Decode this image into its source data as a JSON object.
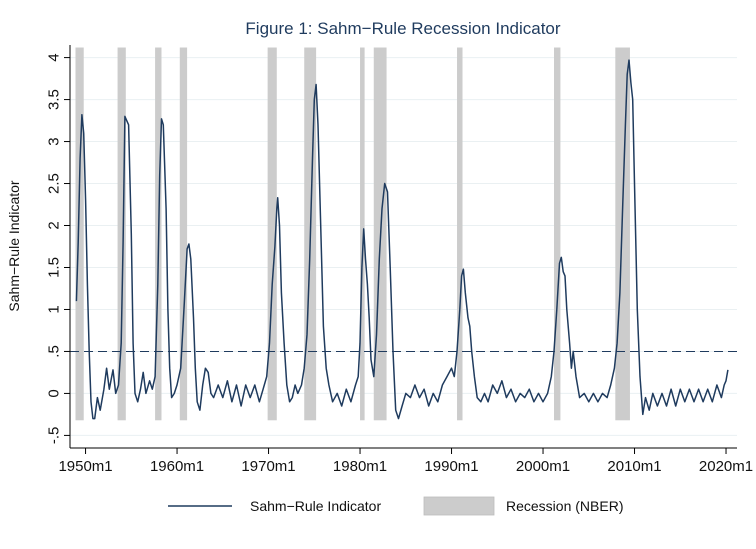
{
  "chart_data": {
    "type": "line",
    "title": "Figure 1: Sahm−Rule Recession Indicator",
    "xlabel": "",
    "ylabel": "Sahm−Rule Indicator",
    "xlim": [
      1948.3,
      2021.2
    ],
    "ylim": [
      -0.65,
      4.15
    ],
    "x_ticks": [
      1950,
      1960,
      1970,
      1980,
      1990,
      2000,
      2010,
      2020
    ],
    "x_tick_labels": [
      "1950m1",
      "1960m1",
      "1970m1",
      "1980m1",
      "1990m1",
      "2000m1",
      "2010m1",
      "2020m1"
    ],
    "y_ticks": [
      -0.5,
      0,
      0.5,
      1,
      1.5,
      2,
      2.5,
      3,
      3.5,
      4
    ],
    "y_tick_labels": [
      "-.5",
      "0",
      ".5",
      "1",
      "1.5",
      "2",
      "2.5",
      "3",
      "3.5",
      "4"
    ],
    "grid": true,
    "threshold": {
      "value": 0.5,
      "style": "dashed"
    },
    "recessions": [
      [
        1948.9,
        1949.8
      ],
      [
        1953.5,
        1954.4
      ],
      [
        1957.6,
        1958.3
      ],
      [
        1960.3,
        1961.1
      ],
      [
        1969.9,
        1970.9
      ],
      [
        1973.9,
        1975.2
      ],
      [
        1980.0,
        1980.5
      ],
      [
        1981.5,
        1982.9
      ],
      [
        1990.6,
        1991.2
      ],
      [
        2001.2,
        2001.9
      ],
      [
        2007.9,
        2009.5
      ]
    ],
    "series": [
      {
        "name": "Sahm−Rule Indicator",
        "color": "#1f3b5e",
        "points": [
          [
            1949.0,
            1.1
          ],
          [
            1949.2,
            1.8
          ],
          [
            1949.4,
            2.8
          ],
          [
            1949.6,
            3.32
          ],
          [
            1949.8,
            3.1
          ],
          [
            1950.0,
            2.3
          ],
          [
            1950.2,
            1.3
          ],
          [
            1950.4,
            0.5
          ],
          [
            1950.6,
            -0.1
          ],
          [
            1950.8,
            -0.3
          ],
          [
            1951.0,
            -0.3
          ],
          [
            1951.3,
            -0.05
          ],
          [
            1951.6,
            -0.2
          ],
          [
            1952.0,
            0.05
          ],
          [
            1952.3,
            0.3
          ],
          [
            1952.6,
            0.05
          ],
          [
            1953.0,
            0.28
          ],
          [
            1953.3,
            0.0
          ],
          [
            1953.6,
            0.1
          ],
          [
            1953.9,
            0.6
          ],
          [
            1954.1,
            1.8
          ],
          [
            1954.3,
            3.3
          ],
          [
            1954.5,
            3.25
          ],
          [
            1954.7,
            3.2
          ],
          [
            1955.0,
            1.9
          ],
          [
            1955.2,
            0.6
          ],
          [
            1955.4,
            0.0
          ],
          [
            1955.7,
            -0.1
          ],
          [
            1956.0,
            0.05
          ],
          [
            1956.3,
            0.25
          ],
          [
            1956.6,
            0.0
          ],
          [
            1957.0,
            0.15
          ],
          [
            1957.3,
            0.05
          ],
          [
            1957.6,
            0.2
          ],
          [
            1957.9,
            1.3
          ],
          [
            1958.1,
            2.6
          ],
          [
            1958.3,
            3.27
          ],
          [
            1958.5,
            3.2
          ],
          [
            1958.8,
            2.2
          ],
          [
            1959.0,
            1.0
          ],
          [
            1959.2,
            0.3
          ],
          [
            1959.4,
            -0.05
          ],
          [
            1959.7,
            0.0
          ],
          [
            1960.0,
            0.1
          ],
          [
            1960.4,
            0.3
          ],
          [
            1960.8,
            1.1
          ],
          [
            1961.1,
            1.72
          ],
          [
            1961.3,
            1.78
          ],
          [
            1961.5,
            1.6
          ],
          [
            1961.8,
            0.9
          ],
          [
            1962.0,
            0.3
          ],
          [
            1962.2,
            -0.1
          ],
          [
            1962.5,
            -0.2
          ],
          [
            1962.8,
            0.1
          ],
          [
            1963.1,
            0.3
          ],
          [
            1963.4,
            0.25
          ],
          [
            1963.7,
            0.0
          ],
          [
            1964.0,
            -0.05
          ],
          [
            1964.5,
            0.1
          ],
          [
            1965.0,
            -0.05
          ],
          [
            1965.5,
            0.15
          ],
          [
            1966.0,
            -0.1
          ],
          [
            1966.5,
            0.1
          ],
          [
            1967.0,
            -0.15
          ],
          [
            1967.5,
            0.1
          ],
          [
            1968.0,
            -0.05
          ],
          [
            1968.5,
            0.1
          ],
          [
            1969.0,
            -0.1
          ],
          [
            1969.4,
            0.05
          ],
          [
            1969.8,
            0.2
          ],
          [
            1970.1,
            0.6
          ],
          [
            1970.4,
            1.3
          ],
          [
            1970.7,
            1.75
          ],
          [
            1970.9,
            2.2
          ],
          [
            1971.0,
            2.33
          ],
          [
            1971.2,
            2.0
          ],
          [
            1971.4,
            1.2
          ],
          [
            1971.7,
            0.6
          ],
          [
            1972.0,
            0.1
          ],
          [
            1972.3,
            -0.1
          ],
          [
            1972.6,
            -0.05
          ],
          [
            1972.9,
            0.1
          ],
          [
            1973.2,
            0.0
          ],
          [
            1973.6,
            0.1
          ],
          [
            1973.9,
            0.3
          ],
          [
            1974.2,
            0.7
          ],
          [
            1974.5,
            1.6
          ],
          [
            1974.8,
            2.8
          ],
          [
            1975.0,
            3.5
          ],
          [
            1975.2,
            3.68
          ],
          [
            1975.4,
            3.2
          ],
          [
            1975.7,
            2.0
          ],
          [
            1976.0,
            0.8
          ],
          [
            1976.3,
            0.3
          ],
          [
            1976.6,
            0.1
          ],
          [
            1977.0,
            -0.1
          ],
          [
            1977.5,
            0.0
          ],
          [
            1978.0,
            -0.15
          ],
          [
            1978.5,
            0.05
          ],
          [
            1979.0,
            -0.1
          ],
          [
            1979.5,
            0.1
          ],
          [
            1979.8,
            0.2
          ],
          [
            1980.0,
            0.6
          ],
          [
            1980.2,
            1.5
          ],
          [
            1980.4,
            1.96
          ],
          [
            1980.6,
            1.6
          ],
          [
            1980.8,
            1.3
          ],
          [
            1981.0,
            0.9
          ],
          [
            1981.2,
            0.4
          ],
          [
            1981.5,
            0.2
          ],
          [
            1981.8,
            0.7
          ],
          [
            1982.1,
            1.6
          ],
          [
            1982.4,
            2.2
          ],
          [
            1982.7,
            2.5
          ],
          [
            1983.0,
            2.4
          ],
          [
            1983.3,
            1.5
          ],
          [
            1983.6,
            0.5
          ],
          [
            1983.9,
            -0.2
          ],
          [
            1984.2,
            -0.3
          ],
          [
            1984.6,
            -0.15
          ],
          [
            1985.0,
            0.0
          ],
          [
            1985.5,
            -0.05
          ],
          [
            1986.0,
            0.1
          ],
          [
            1986.5,
            -0.05
          ],
          [
            1987.0,
            0.05
          ],
          [
            1987.5,
            -0.15
          ],
          [
            1988.0,
            0.0
          ],
          [
            1988.5,
            -0.1
          ],
          [
            1989.0,
            0.1
          ],
          [
            1989.5,
            0.2
          ],
          [
            1990.0,
            0.3
          ],
          [
            1990.3,
            0.2
          ],
          [
            1990.6,
            0.5
          ],
          [
            1990.9,
            1.0
          ],
          [
            1991.1,
            1.4
          ],
          [
            1991.3,
            1.48
          ],
          [
            1991.5,
            1.2
          ],
          [
            1991.8,
            0.9
          ],
          [
            1992.0,
            0.8
          ],
          [
            1992.2,
            0.5
          ],
          [
            1992.5,
            0.2
          ],
          [
            1992.8,
            -0.05
          ],
          [
            1993.2,
            -0.1
          ],
          [
            1993.6,
            0.0
          ],
          [
            1994.0,
            -0.1
          ],
          [
            1994.5,
            0.1
          ],
          [
            1995.0,
            0.0
          ],
          [
            1995.5,
            0.15
          ],
          [
            1996.0,
            -0.05
          ],
          [
            1996.5,
            0.05
          ],
          [
            1997.0,
            -0.1
          ],
          [
            1997.5,
            0.0
          ],
          [
            1998.0,
            -0.05
          ],
          [
            1998.5,
            0.05
          ],
          [
            1999.0,
            -0.1
          ],
          [
            1999.5,
            0.0
          ],
          [
            2000.0,
            -0.1
          ],
          [
            2000.5,
            0.0
          ],
          [
            2000.9,
            0.2
          ],
          [
            2001.2,
            0.5
          ],
          [
            2001.5,
            1.0
          ],
          [
            2001.8,
            1.55
          ],
          [
            2002.0,
            1.62
          ],
          [
            2002.2,
            1.45
          ],
          [
            2002.4,
            1.4
          ],
          [
            2002.6,
            1.0
          ],
          [
            2002.9,
            0.6
          ],
          [
            2003.1,
            0.3
          ],
          [
            2003.3,
            0.5
          ],
          [
            2003.6,
            0.2
          ],
          [
            2004.0,
            -0.05
          ],
          [
            2004.5,
            0.0
          ],
          [
            2005.0,
            -0.1
          ],
          [
            2005.5,
            0.0
          ],
          [
            2006.0,
            -0.1
          ],
          [
            2006.5,
            0.0
          ],
          [
            2007.0,
            -0.05
          ],
          [
            2007.4,
            0.1
          ],
          [
            2007.8,
            0.3
          ],
          [
            2008.1,
            0.6
          ],
          [
            2008.4,
            1.2
          ],
          [
            2008.7,
            2.2
          ],
          [
            2009.0,
            3.2
          ],
          [
            2009.2,
            3.8
          ],
          [
            2009.4,
            3.97
          ],
          [
            2009.6,
            3.7
          ],
          [
            2009.8,
            3.5
          ],
          [
            2010.0,
            2.5
          ],
          [
            2010.3,
            1.0
          ],
          [
            2010.6,
            0.2
          ],
          [
            2010.9,
            -0.25
          ],
          [
            2011.2,
            -0.05
          ],
          [
            2011.6,
            -0.2
          ],
          [
            2012.0,
            0.0
          ],
          [
            2012.5,
            -0.15
          ],
          [
            2013.0,
            0.0
          ],
          [
            2013.5,
            -0.15
          ],
          [
            2014.0,
            0.05
          ],
          [
            2014.5,
            -0.15
          ],
          [
            2015.0,
            0.05
          ],
          [
            2015.5,
            -0.1
          ],
          [
            2016.0,
            0.05
          ],
          [
            2016.5,
            -0.1
          ],
          [
            2017.0,
            0.05
          ],
          [
            2017.5,
            -0.1
          ],
          [
            2018.0,
            0.05
          ],
          [
            2018.5,
            -0.1
          ],
          [
            2019.0,
            0.1
          ],
          [
            2019.5,
            -0.05
          ],
          [
            2019.8,
            0.1
          ],
          [
            2020.0,
            0.15
          ],
          [
            2020.2,
            0.28
          ]
        ]
      }
    ],
    "legend": {
      "placement": "bottom",
      "entries": [
        {
          "label": "Sahm−Rule Indicator",
          "kind": "line",
          "color": "#1f3b5e"
        },
        {
          "label": "Recession (NBER)",
          "kind": "area",
          "color": "#cccccc"
        }
      ]
    },
    "colors": {
      "line": "#1f3b5e",
      "recession": "#cccccc",
      "grid": "#eaf0f2",
      "threshold": "#1f3b5e"
    }
  }
}
